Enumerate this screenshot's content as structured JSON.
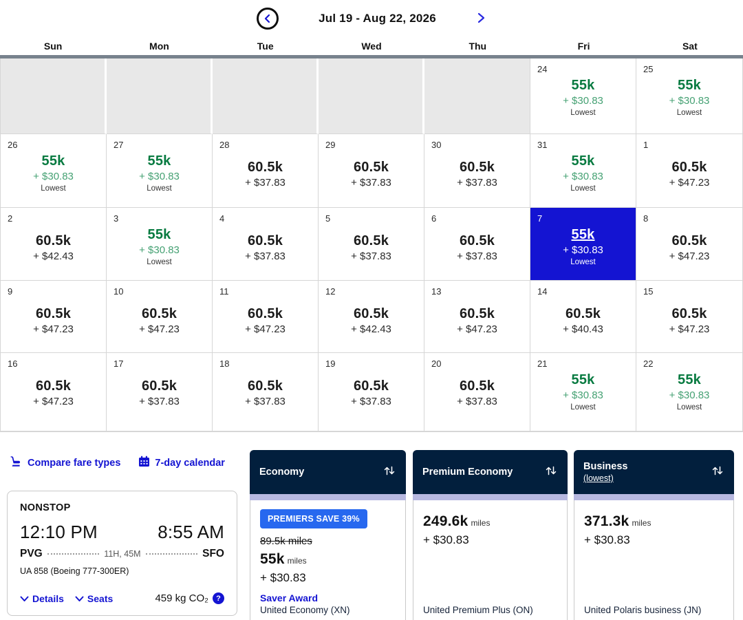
{
  "colors": {
    "accent_blue": "#1414d2",
    "selected_blue": "#1414d2",
    "miles_green": "#077a40",
    "fee_green": "#45a173",
    "header_navy": "#021f3d",
    "lavender": "#b7b8e0",
    "badge_blue": "#2768ef"
  },
  "header": {
    "title": "Jul 19 - Aug 22, 2026"
  },
  "calendar": {
    "day_headers": [
      "Sun",
      "Mon",
      "Tue",
      "Wed",
      "Thu",
      "Fri",
      "Sat"
    ],
    "weeks": [
      [
        {
          "empty": true
        },
        {
          "empty": true
        },
        {
          "empty": true
        },
        {
          "empty": true
        },
        {
          "empty": true
        },
        {
          "day": "24",
          "miles": "55k",
          "fee": "+ $30.83",
          "tag": "Lowest",
          "style": "green"
        },
        {
          "day": "25",
          "miles": "55k",
          "fee": "+ $30.83",
          "tag": "Lowest",
          "style": "green"
        }
      ],
      [
        {
          "day": "26",
          "miles": "55k",
          "fee": "+ $30.83",
          "tag": "Lowest",
          "style": "green"
        },
        {
          "day": "27",
          "miles": "55k",
          "fee": "+ $30.83",
          "tag": "Lowest",
          "style": "green"
        },
        {
          "day": "28",
          "miles": "60.5k",
          "fee": "+ $37.83",
          "style": "default"
        },
        {
          "day": "29",
          "miles": "60.5k",
          "fee": "+ $37.83",
          "style": "default"
        },
        {
          "day": "30",
          "miles": "60.5k",
          "fee": "+ $37.83",
          "style": "default"
        },
        {
          "day": "31",
          "miles": "55k",
          "fee": "+ $30.83",
          "tag": "Lowest",
          "style": "green"
        },
        {
          "day": "1",
          "miles": "60.5k",
          "fee": "+ $47.23",
          "style": "default"
        }
      ],
      [
        {
          "day": "2",
          "miles": "60.5k",
          "fee": "+ $42.43",
          "style": "default"
        },
        {
          "day": "3",
          "miles": "55k",
          "fee": "+ $30.83",
          "tag": "Lowest",
          "style": "green"
        },
        {
          "day": "4",
          "miles": "60.5k",
          "fee": "+ $37.83",
          "style": "default"
        },
        {
          "day": "5",
          "miles": "60.5k",
          "fee": "+ $37.83",
          "style": "default"
        },
        {
          "day": "6",
          "miles": "60.5k",
          "fee": "+ $37.83",
          "style": "default"
        },
        {
          "day": "7",
          "miles": "55k",
          "fee": "+ $30.83",
          "tag": "Lowest",
          "style": "selected"
        },
        {
          "day": "8",
          "miles": "60.5k",
          "fee": "+ $47.23",
          "style": "default"
        }
      ],
      [
        {
          "day": "9",
          "miles": "60.5k",
          "fee": "+ $47.23",
          "style": "default"
        },
        {
          "day": "10",
          "miles": "60.5k",
          "fee": "+ $47.23",
          "style": "default"
        },
        {
          "day": "11",
          "miles": "60.5k",
          "fee": "+ $47.23",
          "style": "default"
        },
        {
          "day": "12",
          "miles": "60.5k",
          "fee": "+ $42.43",
          "style": "default"
        },
        {
          "day": "13",
          "miles": "60.5k",
          "fee": "+ $47.23",
          "style": "default"
        },
        {
          "day": "14",
          "miles": "60.5k",
          "fee": "+ $40.43",
          "style": "default"
        },
        {
          "day": "15",
          "miles": "60.5k",
          "fee": "+ $47.23",
          "style": "default"
        }
      ],
      [
        {
          "day": "16",
          "miles": "60.5k",
          "fee": "+ $47.23",
          "style": "default"
        },
        {
          "day": "17",
          "miles": "60.5k",
          "fee": "+ $37.83",
          "style": "default"
        },
        {
          "day": "18",
          "miles": "60.5k",
          "fee": "+ $37.83",
          "style": "default"
        },
        {
          "day": "19",
          "miles": "60.5k",
          "fee": "+ $37.83",
          "style": "default"
        },
        {
          "day": "20",
          "miles": "60.5k",
          "fee": "+ $37.83",
          "style": "default"
        },
        {
          "day": "21",
          "miles": "55k",
          "fee": "+ $30.83",
          "tag": "Lowest",
          "style": "green"
        },
        {
          "day": "22",
          "miles": "55k",
          "fee": "+ $30.83",
          "tag": "Lowest",
          "style": "green"
        }
      ]
    ]
  },
  "toolbar": {
    "compare_fare_types": "Compare fare types",
    "seven_day_calendar": "7-day calendar"
  },
  "flight": {
    "stops": "NONSTOP",
    "depart_time": "12:10 PM",
    "arrive_time": "8:55 AM",
    "origin": "PVG",
    "destination": "SFO",
    "duration": "11H, 45M",
    "flight_info": "UA 858 (Boeing 777-300ER)",
    "details_label": "Details",
    "seats_label": "Seats",
    "emissions": "459 kg CO₂",
    "emissions_help": "?"
  },
  "fare_columns": [
    {
      "id": "economy",
      "label": "Economy",
      "badge": "PREMIERS SAVE 39%",
      "strikethrough": "89.5k miles",
      "miles": "55k",
      "miles_unit": "miles",
      "fee": "+ $30.83",
      "award": "Saver Award",
      "product": "United Economy (XN)"
    },
    {
      "id": "premium",
      "label": "Premium Economy",
      "miles": "249.6k",
      "miles_unit": "miles",
      "fee": "+ $30.83",
      "product": "United Premium Plus (ON)"
    },
    {
      "id": "business",
      "label": "Business",
      "sublabel": "(lowest)",
      "miles": "371.3k",
      "miles_unit": "miles",
      "fee": "+ $30.83",
      "product": "United Polaris business (JN)"
    }
  ]
}
